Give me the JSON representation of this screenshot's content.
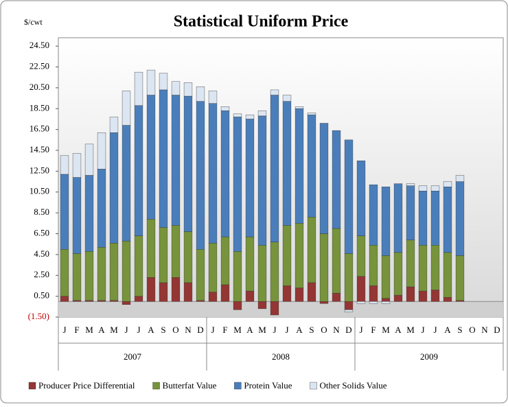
{
  "chart_data": {
    "type": "stacked_bar",
    "title": "Statistical Uniform Price",
    "y_label": "$/cwt",
    "categories": [
      "J",
      "F",
      "M",
      "A",
      "M",
      "J",
      "J",
      "A",
      "S",
      "O",
      "N",
      "D",
      "J",
      "F",
      "M",
      "A",
      "M",
      "J",
      "J",
      "A",
      "S",
      "O",
      "N",
      "D",
      "J",
      "F",
      "M",
      "A",
      "M",
      "J",
      "J",
      "A",
      "S",
      "O",
      "N",
      "D"
    ],
    "groups": [
      "2007",
      "2008",
      "2009"
    ],
    "series": [
      {
        "name": "Producer Price Differential",
        "color": "#943634",
        "values": [
          0.5,
          0.1,
          0.1,
          0.1,
          0.1,
          -0.3,
          0.5,
          2.3,
          1.8,
          2.3,
          1.8,
          0.1,
          0.9,
          1.6,
          -0.8,
          1.0,
          -0.7,
          -1.3,
          1.5,
          1.3,
          1.8,
          -0.2,
          0.8,
          -0.8,
          2.4,
          1.5,
          0.3,
          0.6,
          1.4,
          1.0,
          1.1,
          0.4,
          0.1,
          null,
          null,
          null
        ]
      },
      {
        "name": "Butterfat Value",
        "color": "#77933c",
        "values": [
          4.5,
          4.5,
          4.7,
          5.1,
          5.5,
          5.8,
          5.8,
          5.6,
          5.3,
          5.0,
          4.9,
          4.9,
          4.7,
          4.6,
          4.8,
          5.2,
          5.4,
          5.7,
          5.8,
          6.2,
          6.3,
          6.5,
          6.2,
          4.6,
          3.9,
          3.9,
          4.1,
          4.1,
          4.5,
          4.4,
          4.3,
          4.3,
          4.3,
          null,
          null,
          null
        ]
      },
      {
        "name": "Protein Value",
        "color": "#4a7ebb",
        "values": [
          7.2,
          7.3,
          7.3,
          7.5,
          10.6,
          11.1,
          12.5,
          11.9,
          13.2,
          12.5,
          13.0,
          14.2,
          13.4,
          12.1,
          12.9,
          11.3,
          12.4,
          14.1,
          11.9,
          11.0,
          9.8,
          10.6,
          9.4,
          10.9,
          7.2,
          5.8,
          6.6,
          6.6,
          5.2,
          5.2,
          5.2,
          6.3,
          7.1,
          null,
          null,
          null
        ]
      },
      {
        "name": "Other Solids Value",
        "color": "#dce6f2",
        "values": [
          1.8,
          2.3,
          3.0,
          3.5,
          1.5,
          3.3,
          3.2,
          2.4,
          1.6,
          1.3,
          1.3,
          1.4,
          1.2,
          0.4,
          0.3,
          0.4,
          0.5,
          0.5,
          0.6,
          0.2,
          0.2,
          0.0,
          0.0,
          -0.2,
          -0.2,
          -0.2,
          -0.2,
          0.0,
          0.2,
          0.5,
          0.5,
          0.5,
          0.6,
          null,
          null,
          null
        ]
      }
    ],
    "ylim": [
      -1.5,
      25.3
    ],
    "yticks": [
      {
        "value": -1.5,
        "label": "(1.50)"
      },
      {
        "value": 0.5,
        "label": "0.50"
      },
      {
        "value": 2.5,
        "label": "2.50"
      },
      {
        "value": 4.5,
        "label": "4.50"
      },
      {
        "value": 6.5,
        "label": "6.50"
      },
      {
        "value": 8.5,
        "label": "8.50"
      },
      {
        "value": 10.5,
        "label": "10.50"
      },
      {
        "value": 12.5,
        "label": "12.50"
      },
      {
        "value": 14.5,
        "label": "14.50"
      },
      {
        "value": 16.5,
        "label": "16.50"
      },
      {
        "value": 18.5,
        "label": "18.50"
      },
      {
        "value": 20.5,
        "label": "20.50"
      },
      {
        "value": 22.5,
        "label": "22.50"
      },
      {
        "value": 24.5,
        "label": "24.50"
      }
    ],
    "negative_tick_color": "#c00000",
    "grid": false,
    "legend": "bottom"
  }
}
